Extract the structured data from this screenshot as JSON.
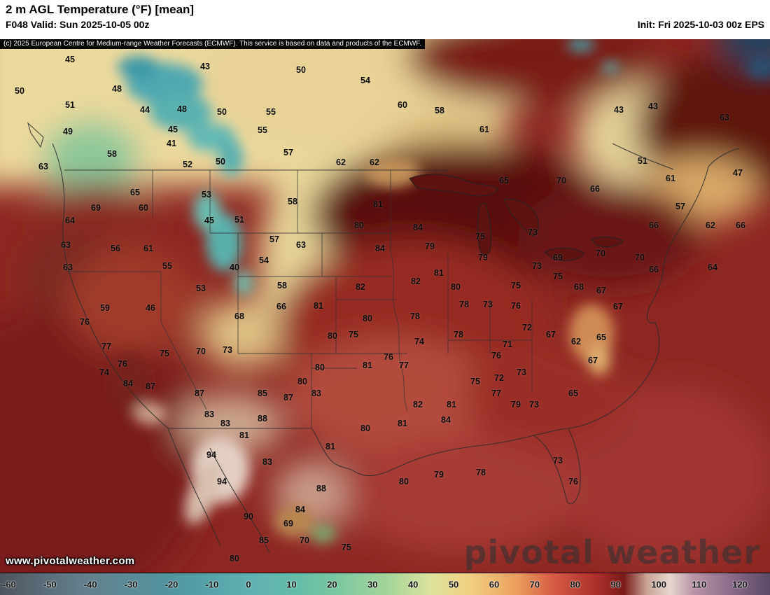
{
  "header": {
    "title": "2 m AGL Temperature (°F) [mean]",
    "valid": "F048 Valid: Sun 2025-10-05 00z",
    "init": "Init: Fri 2025-10-03 00z EPS"
  },
  "attribution": "(c) 2025 European Centre for Medium-range Weather Forecasts (ECMWF). This service is based on data and products of the ECMWF.",
  "watermark": {
    "url_text": "www.pivotalweather.com",
    "brand": "pivotal weather"
  },
  "colorbar": {
    "units": "°F",
    "ticks": [
      -60,
      -50,
      -40,
      -30,
      -20,
      -10,
      0,
      10,
      20,
      30,
      40,
      50,
      60,
      70,
      80,
      90,
      100,
      110,
      120
    ],
    "gradient": [
      {
        "p": 0,
        "c": "#4f555e"
      },
      {
        "p": 6,
        "c": "#5a6e7a"
      },
      {
        "p": 11,
        "c": "#647f8c"
      },
      {
        "p": 17,
        "c": "#5b8b98"
      },
      {
        "p": 22,
        "c": "#50949e"
      },
      {
        "p": 28,
        "c": "#57a5ab"
      },
      {
        "p": 33,
        "c": "#60b2b2"
      },
      {
        "p": 39,
        "c": "#65bda8"
      },
      {
        "p": 44,
        "c": "#7cc8a0"
      },
      {
        "p": 50,
        "c": "#a2d49a"
      },
      {
        "p": 56,
        "c": "#dce29c"
      },
      {
        "p": 61,
        "c": "#f2d080"
      },
      {
        "p": 67,
        "c": "#eba05c"
      },
      {
        "p": 72,
        "c": "#d65a44"
      },
      {
        "p": 78,
        "c": "#a52c28"
      },
      {
        "p": 81,
        "c": "#7a1a17"
      },
      {
        "p": 84,
        "c": "#c9a396"
      },
      {
        "p": 87,
        "c": "#e6d6cc"
      },
      {
        "p": 90,
        "c": "#b995a8"
      },
      {
        "p": 95,
        "c": "#8a6a88"
      },
      {
        "p": 100,
        "c": "#5a4a66"
      }
    ]
  },
  "map": {
    "labels": [
      [
        45,
        100,
        29
      ],
      [
        43,
        293,
        39
      ],
      [
        50,
        430,
        44
      ],
      [
        54,
        522,
        59
      ],
      [
        50,
        28,
        74
      ],
      [
        48,
        167,
        71
      ],
      [
        51,
        100,
        94
      ],
      [
        44,
        207,
        101
      ],
      [
        48,
        260,
        100
      ],
      [
        50,
        317,
        104
      ],
      [
        55,
        387,
        104
      ],
      [
        60,
        575,
        94
      ],
      [
        58,
        628,
        102
      ],
      [
        43,
        884,
        101
      ],
      [
        43,
        933,
        96
      ],
      [
        49,
        97,
        132
      ],
      [
        45,
        247,
        129
      ],
      [
        55,
        375,
        130
      ],
      [
        61,
        692,
        129
      ],
      [
        41,
        245,
        149
      ],
      [
        58,
        160,
        164
      ],
      [
        57,
        412,
        162
      ],
      [
        52,
        268,
        179
      ],
      [
        50,
        315,
        175
      ],
      [
        62,
        487,
        176
      ],
      [
        62,
        535,
        176
      ],
      [
        51,
        918,
        174
      ],
      [
        63,
        62,
        182
      ],
      [
        61,
        958,
        199
      ],
      [
        47,
        1054,
        191
      ],
      [
        63,
        1035,
        112
      ],
      [
        65,
        193,
        219
      ],
      [
        53,
        295,
        222
      ],
      [
        65,
        720,
        202
      ],
      [
        70,
        802,
        202
      ],
      [
        66,
        850,
        214
      ],
      [
        69,
        137,
        241
      ],
      [
        60,
        205,
        241
      ],
      [
        58,
        418,
        232
      ],
      [
        64,
        100,
        259
      ],
      [
        45,
        299,
        259
      ],
      [
        51,
        342,
        258
      ],
      [
        81,
        540,
        236
      ],
      [
        80,
        513,
        266
      ],
      [
        84,
        597,
        269
      ],
      [
        75,
        686,
        282
      ],
      [
        73,
        761,
        276
      ],
      [
        66,
        934,
        266
      ],
      [
        62,
        1015,
        266
      ],
      [
        66,
        1058,
        266
      ],
      [
        57,
        972,
        239
      ],
      [
        79,
        614,
        296
      ],
      [
        63,
        94,
        294
      ],
      [
        56,
        165,
        299
      ],
      [
        61,
        212,
        299
      ],
      [
        57,
        392,
        286
      ],
      [
        63,
        430,
        294
      ],
      [
        84,
        543,
        299
      ],
      [
        79,
        690,
        312
      ],
      [
        69,
        797,
        312
      ],
      [
        70,
        858,
        306
      ],
      [
        70,
        914,
        312
      ],
      [
        66,
        934,
        329
      ],
      [
        64,
        1018,
        326
      ],
      [
        63,
        97,
        326
      ],
      [
        55,
        239,
        324
      ],
      [
        40,
        335,
        326
      ],
      [
        54,
        377,
        316
      ],
      [
        73,
        767,
        324
      ],
      [
        75,
        797,
        339
      ],
      [
        81,
        627,
        334
      ],
      [
        82,
        594,
        346
      ],
      [
        82,
        515,
        354
      ],
      [
        80,
        651,
        354
      ],
      [
        58,
        403,
        352
      ],
      [
        53,
        287,
        356
      ],
      [
        75,
        737,
        352
      ],
      [
        68,
        827,
        354
      ],
      [
        67,
        859,
        359
      ],
      [
        67,
        883,
        382
      ],
      [
        59,
        150,
        384
      ],
      [
        46,
        215,
        384
      ],
      [
        66,
        402,
        382
      ],
      [
        81,
        455,
        381
      ],
      [
        78,
        663,
        379
      ],
      [
        73,
        697,
        379
      ],
      [
        76,
        737,
        381
      ],
      [
        68,
        342,
        396
      ],
      [
        76,
        121,
        404
      ],
      [
        80,
        525,
        399
      ],
      [
        78,
        593,
        396
      ],
      [
        72,
        753,
        412
      ],
      [
        77,
        152,
        439
      ],
      [
        75,
        235,
        449
      ],
      [
        70,
        287,
        446
      ],
      [
        73,
        325,
        444
      ],
      [
        80,
        475,
        424
      ],
      [
        75,
        505,
        422
      ],
      [
        74,
        599,
        432
      ],
      [
        78,
        655,
        422
      ],
      [
        71,
        725,
        436
      ],
      [
        67,
        787,
        422
      ],
      [
        62,
        823,
        432
      ],
      [
        65,
        859,
        426
      ],
      [
        76,
        555,
        454
      ],
      [
        76,
        709,
        452
      ],
      [
        67,
        847,
        459
      ],
      [
        76,
        175,
        464
      ],
      [
        81,
        525,
        466
      ],
      [
        77,
        577,
        466
      ],
      [
        74,
        149,
        476
      ],
      [
        84,
        183,
        492
      ],
      [
        87,
        215,
        496
      ],
      [
        80,
        457,
        469
      ],
      [
        80,
        432,
        489
      ],
      [
        83,
        452,
        506
      ],
      [
        87,
        412,
        512
      ],
      [
        85,
        375,
        506
      ],
      [
        87,
        285,
        506
      ],
      [
        72,
        713,
        484
      ],
      [
        73,
        745,
        476
      ],
      [
        75,
        679,
        489
      ],
      [
        82,
        597,
        522
      ],
      [
        81,
        645,
        522
      ],
      [
        77,
        709,
        506
      ],
      [
        79,
        737,
        522
      ],
      [
        73,
        763,
        522
      ],
      [
        65,
        819,
        506
      ],
      [
        83,
        299,
        536
      ],
      [
        88,
        375,
        542
      ],
      [
        83,
        322,
        549
      ],
      [
        81,
        349,
        566
      ],
      [
        80,
        522,
        556
      ],
      [
        81,
        575,
        549
      ],
      [
        84,
        637,
        544
      ],
      [
        94,
        302,
        594
      ],
      [
        83,
        382,
        604
      ],
      [
        81,
        472,
        582
      ],
      [
        73,
        797,
        602
      ],
      [
        94,
        317,
        632
      ],
      [
        88,
        459,
        642
      ],
      [
        79,
        627,
        622
      ],
      [
        78,
        687,
        619
      ],
      [
        80,
        577,
        632
      ],
      [
        84,
        429,
        672
      ],
      [
        76,
        819,
        632
      ],
      [
        90,
        355,
        682
      ],
      [
        85,
        377,
        716
      ],
      [
        69,
        412,
        692
      ],
      [
        70,
        435,
        716
      ],
      [
        75,
        495,
        726
      ],
      [
        80,
        335,
        742
      ]
    ]
  }
}
